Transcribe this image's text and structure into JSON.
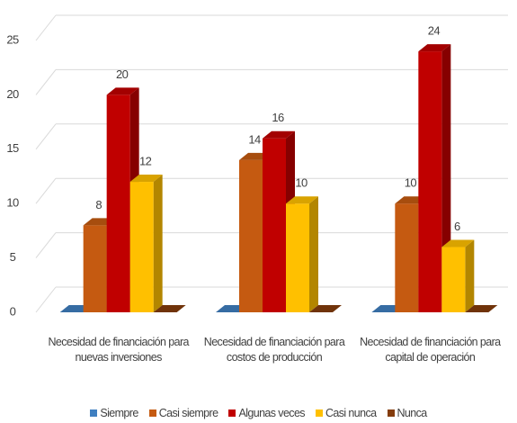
{
  "chart_data": {
    "type": "bar3d",
    "categories": [
      "Necesidad de financiación para nuevas inversiones",
      "Necesidad de financiación para costos de producción",
      "Necesidad de financiación para capital de operación"
    ],
    "series": [
      {
        "name": "Siempre",
        "color": "#3f7fc0",
        "values": [
          0,
          0,
          0
        ]
      },
      {
        "name": "Casi siempre",
        "color": "#c55a11",
        "values": [
          8,
          14,
          10
        ]
      },
      {
        "name": "Algunas veces",
        "color": "#c00000",
        "values": [
          20,
          16,
          24
        ]
      },
      {
        "name": "Casi nunca",
        "color": "#ffc000",
        "values": [
          12,
          10,
          6
        ]
      },
      {
        "name": "Nunca",
        "color": "#843c0c",
        "values": [
          0,
          0,
          0
        ]
      }
    ],
    "ylim": [
      0,
      25
    ],
    "yticks": [
      0,
      5,
      10,
      15,
      20,
      25
    ],
    "grid": true,
    "legend": "bottom"
  }
}
